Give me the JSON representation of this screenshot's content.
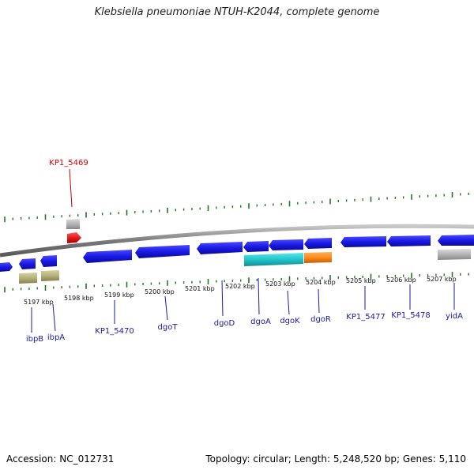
{
  "title": "Klebsiella pneumoniae NTUH-K2044, complete genome",
  "footer": {
    "accession": "Accession: NC_012731",
    "summary": "Topology: circular; Length: 5,248,520 bp; Genes: 5,110"
  },
  "colors": {
    "backbone": "#8a8a8a",
    "tick": "#1f7a1f",
    "gene_label": "#1a1aa6",
    "highlight_label": "#cc0000",
    "blue_gene": "#1a1ae6",
    "cyan_gene": "#22c4cc",
    "orange_gene": "#ff8c1a",
    "gray_gene": "#b4b4b4",
    "red_gene": "#e61a1a",
    "khaki_gene": "#b5b07a"
  },
  "scale_labels": [
    "5197 kbp",
    "5198 kbp",
    "5199 kbp",
    "5200 kbp",
    "5201 kbp",
    "5202 kbp",
    "5203 kbp",
    "5204 kbp",
    "5205 kbp",
    "5206 kbp",
    "5207 kbp"
  ],
  "gene_labels": [
    {
      "text": "KP1_5469",
      "color": "highlight"
    },
    {
      "text": "ibpB",
      "color": "normal"
    },
    {
      "text": "ibpA",
      "color": "normal"
    },
    {
      "text": "KP1_5470",
      "color": "normal"
    },
    {
      "text": "dgoT",
      "color": "normal"
    },
    {
      "text": "dgoD",
      "color": "normal"
    },
    {
      "text": "dgoA",
      "color": "normal"
    },
    {
      "text": "dgoK",
      "color": "normal"
    },
    {
      "text": "dgoR",
      "color": "normal"
    },
    {
      "text": "KP1_5477",
      "color": "normal"
    },
    {
      "text": "KP1_5478",
      "color": "normal"
    },
    {
      "text": "yidA",
      "color": "normal"
    }
  ]
}
